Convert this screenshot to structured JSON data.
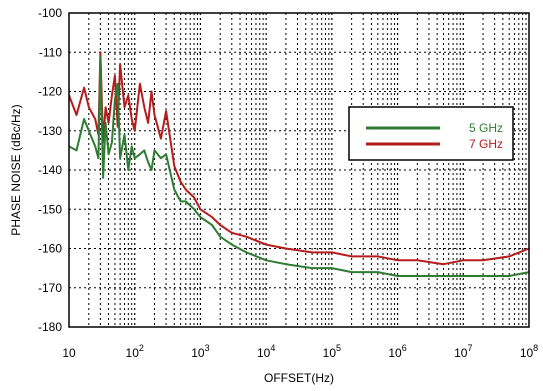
{
  "chart_data": {
    "type": "line",
    "xlabel": "OFFSET(Hz)",
    "ylabel": "PHASE NOISE (dBc/Hz)",
    "xscale": "log",
    "xlim": [
      10,
      100000000
    ],
    "ylim": [
      -180,
      -100
    ],
    "xticks": [
      {
        "value": 10,
        "base": "10",
        "exp": ""
      },
      {
        "value": 100,
        "base": "10",
        "exp": "2"
      },
      {
        "value": 1000,
        "base": "10",
        "exp": "3"
      },
      {
        "value": 10000,
        "base": "10",
        "exp": "4"
      },
      {
        "value": 100000,
        "base": "10",
        "exp": "5"
      },
      {
        "value": 1000000,
        "base": "10",
        "exp": "6"
      },
      {
        "value": 10000000,
        "base": "10",
        "exp": "7"
      },
      {
        "value": 100000000,
        "base": "10",
        "exp": "8"
      }
    ],
    "yticks": [
      -100,
      -110,
      -120,
      -130,
      -140,
      -150,
      -160,
      -170,
      -180
    ],
    "grid": true,
    "grid_style": "dotted",
    "legend_position": "top-right",
    "series": [
      {
        "name": "5 GHz",
        "color": "#2e7d32",
        "x": [
          10,
          13,
          17,
          20,
          25,
          28,
          30,
          33,
          36,
          40,
          45,
          50,
          55,
          60,
          70,
          80,
          90,
          100,
          120,
          140,
          160,
          180,
          200,
          250,
          300,
          400,
          500,
          600,
          800,
          1000,
          1500,
          2000,
          3000,
          5000,
          10000,
          20000,
          50000,
          100000,
          200000,
          500000,
          1000000,
          2000000,
          5000000,
          10000000,
          20000000,
          50000000,
          100000000
        ],
        "y": [
          -134,
          -135,
          -127,
          -130,
          -134,
          -137,
          -111,
          -142,
          -128,
          -136,
          -133,
          -122,
          -118,
          -137,
          -131,
          -140,
          -134,
          -137,
          -136,
          -135,
          -138,
          -140,
          -135,
          -137,
          -136,
          -145,
          -148,
          -148,
          -150,
          -152,
          -154,
          -157,
          -159,
          -161,
          -163,
          -164,
          -165,
          -165,
          -166,
          -166,
          -167,
          -167,
          -167,
          -167,
          -167,
          -167,
          -166
        ]
      },
      {
        "name": "7 GHz",
        "color": "#b71c1c",
        "x": [
          10,
          13,
          17,
          20,
          25,
          28,
          30,
          33,
          36,
          40,
          45,
          50,
          55,
          60,
          70,
          80,
          90,
          100,
          120,
          140,
          160,
          180,
          200,
          250,
          300,
          400,
          500,
          600,
          800,
          1000,
          1500,
          2000,
          3000,
          5000,
          10000,
          20000,
          50000,
          100000,
          200000,
          500000,
          1000000,
          2000000,
          5000000,
          10000000,
          20000000,
          50000000,
          100000000
        ],
        "y": [
          -121,
          -126,
          -119,
          -124,
          -127,
          -131,
          -110,
          -133,
          -124,
          -128,
          -121,
          -116,
          -129,
          -113,
          -124,
          -121,
          -127,
          -130,
          -118,
          -124,
          -128,
          -120,
          -126,
          -132,
          -125,
          -139,
          -143,
          -145,
          -147,
          -150,
          -152,
          -154,
          -156,
          -157,
          -159,
          -160,
          -161,
          -161,
          -162,
          -162,
          -163,
          -163,
          -164,
          -163,
          -163,
          -162,
          -160
        ]
      }
    ]
  }
}
